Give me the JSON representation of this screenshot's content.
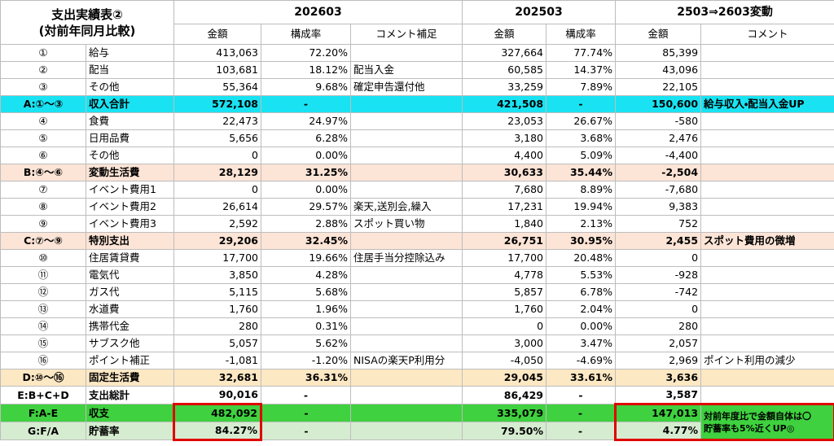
{
  "header": {
    "title": "支出実績表②",
    "subtitle": "(対前年同月比較)",
    "groups": [
      "202603",
      "202503",
      "2503⇒2603変動"
    ],
    "columns": [
      "金額",
      "構成率",
      "コメント補足",
      "金額",
      "構成率",
      "金額",
      "コメント"
    ]
  },
  "table": {
    "rows": [
      {
        "no": "①",
        "item": "給与",
        "amt1": "413,063",
        "rate1": "72.20%",
        "amt2": "327,664",
        "rate2": "77.74%",
        "diff": "85,399"
      },
      {
        "no": "②",
        "item": "配当",
        "amt1": "103,681",
        "rate1": "18.12%",
        "memo1": "配当入金",
        "amt2": "60,585",
        "rate2": "14.37%",
        "diff": "43,096"
      },
      {
        "no": "③",
        "item": "その他",
        "amt1": "55,364",
        "rate1": "9.68%",
        "memo1": "確定申告還付他",
        "amt2": "33,259",
        "rate2": "7.89%",
        "diff": "22,105"
      },
      {
        "no": "A:①～③",
        "item": "収入合計",
        "amt1": "572,108",
        "rate1": "-",
        "amt2": "421,508",
        "rate2": "-",
        "diff": "150,600",
        "memo2": "給与収入・配当入金UP"
      },
      {
        "no": "④",
        "item": "食費",
        "amt1": "22,473",
        "rate1": "24.97%",
        "amt2": "23,053",
        "rate2": "26.67%",
        "diff": "-580"
      },
      {
        "no": "⑤",
        "item": "日用品費",
        "amt1": "5,656",
        "rate1": "6.28%",
        "amt2": "3,180",
        "rate2": "3.68%",
        "diff": "2,476"
      },
      {
        "no": "⑥",
        "item": "その他",
        "amt1": "0",
        "rate1": "0.00%",
        "amt2": "4,400",
        "rate2": "5.09%",
        "diff": "-4,400"
      },
      {
        "no": "B:④～⑥",
        "item": "変動生活費",
        "amt1": "28,129",
        "rate1": "31.25%",
        "amt2": "30,633",
        "rate2": "35.44%",
        "diff": "-2,504"
      },
      {
        "no": "⑦",
        "item": "イベント費用1",
        "amt1": "0",
        "rate1": "0.00%",
        "amt2": "7,680",
        "rate2": "8.89%",
        "diff": "-7,680"
      },
      {
        "no": "⑧",
        "item": "イベント費用2",
        "amt1": "26,614",
        "rate1": "29.57%",
        "memo1": "楽天,送別会,繰入",
        "amt2": "17,231",
        "rate2": "19.94%",
        "diff": "9,383"
      },
      {
        "no": "⑨",
        "item": "イベント費用3",
        "amt1": "2,592",
        "rate1": "2.88%",
        "memo1": "スポット買い物",
        "amt2": "1,840",
        "rate2": "2.13%",
        "diff": "752"
      },
      {
        "no": "C:⑦～⑨",
        "item": "特別支出",
        "amt1": "29,206",
        "rate1": "32.45%",
        "amt2": "26,751",
        "rate2": "30.95%",
        "diff": "2,455",
        "memo2": "スポット費用の微増"
      },
      {
        "no": "⑩",
        "item": "住居賃貸費",
        "amt1": "17,700",
        "rate1": "19.66%",
        "memo1": "住居手当分控除込み",
        "amt2": "17,700",
        "rate2": "20.48%",
        "diff": "0"
      },
      {
        "no": "⑪",
        "item": "電気代",
        "amt1": "3,850",
        "rate1": "4.28%",
        "amt2": "4,778",
        "rate2": "5.53%",
        "diff": "-928"
      },
      {
        "no": "⑫",
        "item": "ガス代",
        "amt1": "5,115",
        "rate1": "5.68%",
        "amt2": "5,857",
        "rate2": "6.78%",
        "diff": "-742"
      },
      {
        "no": "⑬",
        "item": "水道費",
        "amt1": "1,760",
        "rate1": "1.96%",
        "amt2": "1,760",
        "rate2": "2.04%",
        "diff": "0"
      },
      {
        "no": "⑭",
        "item": "携帯代金",
        "amt1": "280",
        "rate1": "0.31%",
        "amt2": "0",
        "rate2": "0.00%",
        "diff": "280"
      },
      {
        "no": "⑮",
        "item": "サブスク他",
        "amt1": "5,057",
        "rate1": "5.62%",
        "amt2": "3,000",
        "rate2": "3.47%",
        "diff": "2,057"
      },
      {
        "no": "⑯",
        "item": "ポイント補正",
        "amt1": "-1,081",
        "rate1": "-1.20%",
        "memo1": "NISAの楽天P利用分",
        "amt2": "-4,050",
        "rate2": "-4.69%",
        "diff": "2,969",
        "memo2": "ポイント利用の減少"
      },
      {
        "no": "D:⑩～⑯",
        "item": "固定生活費",
        "amt1": "32,681",
        "rate1": "36.31%",
        "amt2": "29,045",
        "rate2": "33.61%",
        "diff": "3,636"
      },
      {
        "no": "E:B+C+D",
        "item": "支出総計",
        "amt1": "90,016",
        "rate1": "-",
        "amt2": "86,429",
        "rate2": "-",
        "diff": "3,587"
      },
      {
        "no": "F:A-E",
        "item": "収支",
        "amt1": "482,092",
        "rate1": "-",
        "amt2": "335,079",
        "rate2": "-",
        "diff": "147,013"
      },
      {
        "no": "G:F/A",
        "item": "貯蓄率",
        "amt1": "84.27%",
        "rate1": "-",
        "amt2": "79.50%",
        "rate2": "-",
        "diff": "4.77%"
      }
    ]
  },
  "note": [
    "対前年度比で金額自体は〇",
    "貯蓄率も5%近くUP◎"
  ]
}
